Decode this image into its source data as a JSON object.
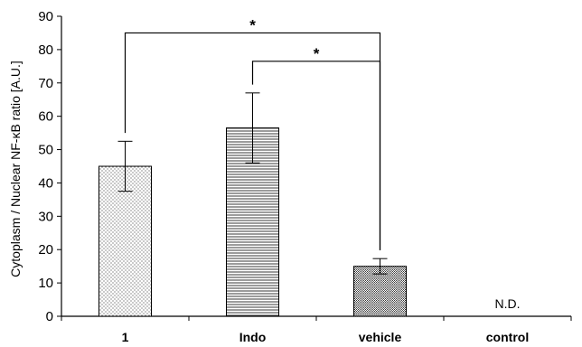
{
  "chart_data": {
    "type": "bar",
    "title": "",
    "xlabel": "",
    "ylabel": "Cytoplasm / Nuclear NF-κB ratio [A.U.]",
    "ylim": [
      0,
      90
    ],
    "yticks": [
      0,
      10,
      20,
      30,
      40,
      50,
      60,
      70,
      80,
      90
    ],
    "categories": [
      "1",
      "Indo",
      "vehicle",
      "control"
    ],
    "values": [
      45,
      56.5,
      15,
      null
    ],
    "errors": [
      7.5,
      10.5,
      2.3,
      null
    ],
    "bar_patterns": [
      "dots",
      "horizontal-lines",
      "dense-dots",
      "none"
    ],
    "annotations": [
      {
        "category": "control",
        "text": "N.D."
      }
    ],
    "significance": [
      {
        "from": "1",
        "to": "vehicle",
        "level": 85,
        "label": "*"
      },
      {
        "from": "Indo",
        "to": "vehicle",
        "level": 76.5,
        "label": "*"
      }
    ],
    "grid": false,
    "legend": "none"
  }
}
